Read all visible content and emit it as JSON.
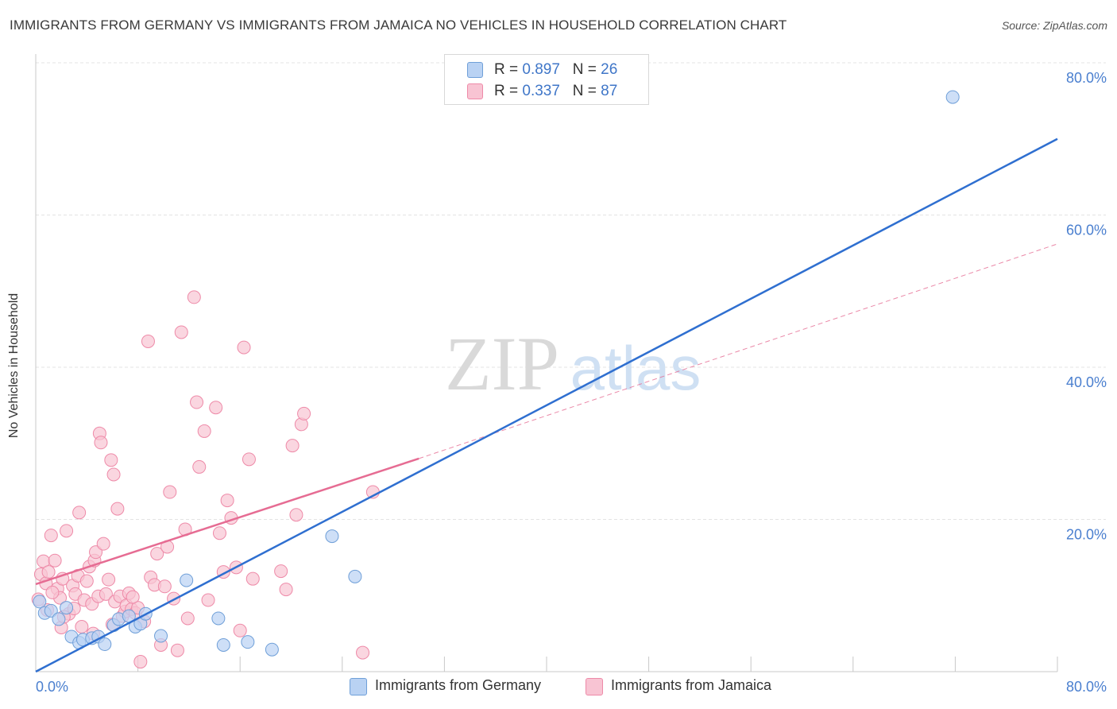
{
  "title": "IMMIGRANTS FROM GERMANY VS IMMIGRANTS FROM JAMAICA NO VEHICLES IN HOUSEHOLD CORRELATION CHART",
  "source": "Source: ZipAtlas.com",
  "watermark": {
    "zip": "ZIP",
    "atlas": "atlas"
  },
  "colors": {
    "germany_fill": "#b9d2f3",
    "germany_stroke": "#6f9fd8",
    "germany_line": "#2f6fd0",
    "jamaica_fill": "#f8c4d3",
    "jamaica_stroke": "#ee8aa8",
    "jamaica_line": "#e66c93",
    "tick_label": "#4a7fcf",
    "grid": "#e3e3e3"
  },
  "legend": {
    "rows": [
      {
        "r_label": "R = ",
        "r_value": "0.897",
        "n_label": "N = ",
        "n_value": "26"
      },
      {
        "r_label": "R = ",
        "r_value": "0.337",
        "n_label": "N = ",
        "n_value": "87"
      }
    ]
  },
  "bottom_legend": [
    {
      "label": "Immigrants from Germany"
    },
    {
      "label": "Immigrants from Jamaica"
    }
  ],
  "chart_data": {
    "type": "scatter",
    "title": "IMMIGRANTS FROM GERMANY VS IMMIGRANTS FROM JAMAICA NO VEHICLES IN HOUSEHOLD CORRELATION CHART",
    "xlabel": "",
    "ylabel": "No Vehicles in Household",
    "xlim": [
      0,
      80
    ],
    "ylim": [
      0,
      80
    ],
    "x_tick_labels": [
      "0.0%",
      "80.0%"
    ],
    "y_ticks": [
      20,
      40,
      60,
      80
    ],
    "y_tick_labels": [
      "20.0%",
      "40.0%",
      "60.0%",
      "80.0%"
    ],
    "grid": true,
    "series": [
      {
        "name": "Immigrants from Germany",
        "R": 0.897,
        "N": 26,
        "points": [
          [
            0.3,
            9.2
          ],
          [
            0.7,
            7.7
          ],
          [
            1.2,
            8.0
          ],
          [
            1.8,
            6.9
          ],
          [
            2.4,
            8.4
          ],
          [
            2.8,
            4.6
          ],
          [
            3.4,
            3.8
          ],
          [
            3.7,
            4.2
          ],
          [
            4.4,
            4.4
          ],
          [
            4.9,
            4.6
          ],
          [
            5.4,
            3.6
          ],
          [
            6.1,
            6.1
          ],
          [
            6.5,
            6.9
          ],
          [
            7.3,
            7.3
          ],
          [
            7.8,
            5.9
          ],
          [
            8.2,
            6.3
          ],
          [
            8.6,
            7.6
          ],
          [
            9.8,
            4.7
          ],
          [
            11.8,
            12.0
          ],
          [
            14.3,
            7.0
          ],
          [
            14.7,
            3.5
          ],
          [
            16.6,
            3.9
          ],
          [
            18.5,
            2.9
          ],
          [
            23.2,
            17.8
          ],
          [
            25.0,
            12.5
          ],
          [
            71.8,
            75.5
          ]
        ],
        "trend": {
          "x": [
            0,
            80
          ],
          "y": [
            0,
            70
          ]
        }
      },
      {
        "name": "Immigrants from Jamaica",
        "R": 0.337,
        "N": 87,
        "points": [
          [
            0.2,
            9.5
          ],
          [
            0.4,
            12.8
          ],
          [
            0.6,
            14.5
          ],
          [
            0.8,
            11.6
          ],
          [
            1.0,
            13.1
          ],
          [
            1.2,
            17.9
          ],
          [
            1.5,
            14.6
          ],
          [
            1.7,
            10.9
          ],
          [
            1.9,
            9.7
          ],
          [
            2.1,
            12.2
          ],
          [
            2.4,
            18.5
          ],
          [
            2.6,
            7.6
          ],
          [
            2.9,
            11.3
          ],
          [
            3.1,
            10.2
          ],
          [
            3.3,
            12.6
          ],
          [
            3.4,
            20.9
          ],
          [
            3.6,
            5.9
          ],
          [
            3.8,
            9.4
          ],
          [
            4.0,
            11.9
          ],
          [
            4.2,
            13.8
          ],
          [
            4.4,
            8.9
          ],
          [
            4.6,
            14.6
          ],
          [
            4.7,
            15.7
          ],
          [
            4.9,
            9.9
          ],
          [
            5.0,
            31.3
          ],
          [
            5.1,
            30.1
          ],
          [
            5.3,
            16.8
          ],
          [
            5.5,
            10.2
          ],
          [
            5.7,
            12.1
          ],
          [
            5.9,
            27.8
          ],
          [
            6.1,
            25.9
          ],
          [
            6.2,
            9.2
          ],
          [
            6.4,
            21.4
          ],
          [
            6.6,
            9.9
          ],
          [
            6.8,
            7.3
          ],
          [
            7.0,
            7.9
          ],
          [
            7.1,
            8.7
          ],
          [
            7.3,
            10.3
          ],
          [
            7.5,
            8.2
          ],
          [
            7.8,
            7.7
          ],
          [
            8.0,
            8.4
          ],
          [
            8.2,
            1.3
          ],
          [
            8.5,
            6.6
          ],
          [
            8.8,
            43.4
          ],
          [
            9.0,
            12.4
          ],
          [
            9.3,
            11.4
          ],
          [
            9.5,
            15.5
          ],
          [
            9.8,
            3.5
          ],
          [
            10.1,
            11.2
          ],
          [
            10.3,
            16.4
          ],
          [
            10.5,
            23.6
          ],
          [
            10.8,
            9.6
          ],
          [
            11.1,
            2.8
          ],
          [
            11.4,
            44.6
          ],
          [
            11.7,
            18.7
          ],
          [
            11.9,
            7.0
          ],
          [
            12.4,
            49.2
          ],
          [
            12.6,
            35.4
          ],
          [
            12.8,
            26.9
          ],
          [
            13.2,
            31.6
          ],
          [
            13.5,
            9.4
          ],
          [
            14.1,
            34.7
          ],
          [
            14.4,
            18.2
          ],
          [
            14.7,
            13.1
          ],
          [
            15.0,
            22.5
          ],
          [
            15.3,
            20.2
          ],
          [
            15.7,
            13.7
          ],
          [
            16.0,
            5.4
          ],
          [
            16.3,
            42.6
          ],
          [
            16.7,
            27.9
          ],
          [
            17.0,
            12.2
          ],
          [
            19.2,
            13.2
          ],
          [
            19.6,
            10.8
          ],
          [
            20.1,
            29.7
          ],
          [
            20.4,
            20.6
          ],
          [
            20.8,
            32.5
          ],
          [
            21.0,
            33.9
          ],
          [
            25.6,
            2.5
          ],
          [
            26.4,
            23.6
          ],
          [
            2.0,
            5.8
          ],
          [
            3.0,
            8.3
          ],
          [
            4.5,
            5.0
          ],
          [
            6.0,
            6.2
          ],
          [
            7.6,
            9.8
          ],
          [
            0.9,
            8.1
          ],
          [
            1.3,
            10.4
          ],
          [
            2.2,
            7.2
          ]
        ],
        "trend": {
          "x": [
            0,
            30
          ],
          "y": [
            11.5,
            28.0
          ]
        },
        "trend_extension": {
          "x": [
            30,
            80
          ],
          "y": [
            28.0,
            56.2
          ]
        }
      }
    ]
  }
}
